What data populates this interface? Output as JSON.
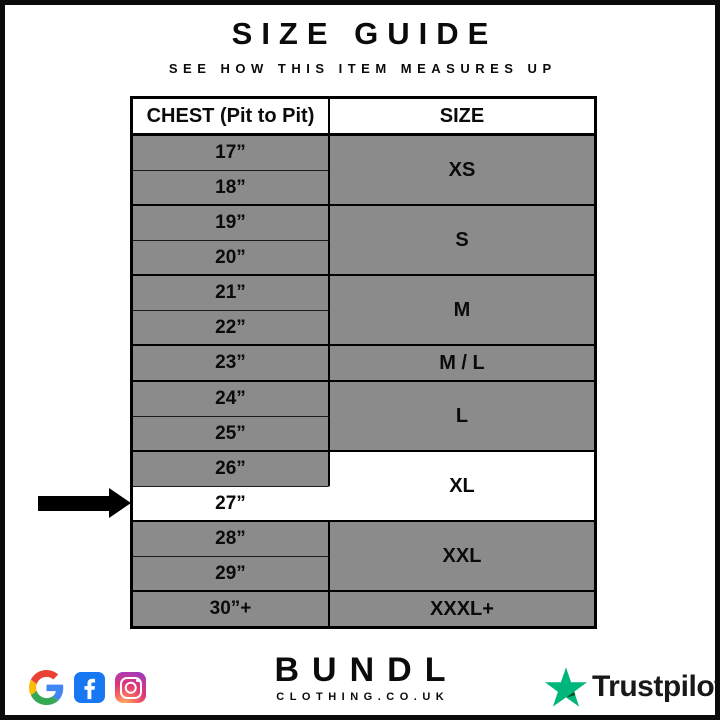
{
  "header": {
    "title": "SIZE GUIDE",
    "subtitle": "SEE HOW THIS ITEM MEASURES UP"
  },
  "table": {
    "columns": {
      "chest": "CHEST (Pit to Pit)",
      "size": "SIZE"
    },
    "groups": [
      {
        "size": "XS",
        "chest": [
          "17”",
          "18”"
        ]
      },
      {
        "size": "S",
        "chest": [
          "19”",
          "20”"
        ]
      },
      {
        "size": "M",
        "chest": [
          "21”",
          "22”"
        ]
      },
      {
        "size": "M / L",
        "chest": [
          "23”"
        ]
      },
      {
        "size": "L",
        "chest": [
          "24”",
          "25”"
        ]
      },
      {
        "size": "XL",
        "chest": [
          "26”",
          "27”"
        ],
        "highlight": {
          "chest": "27”",
          "size_cell_white": true
        }
      },
      {
        "size": "XXL",
        "chest": [
          "28”",
          "29”"
        ]
      },
      {
        "size": "XXXL+",
        "chest": [
          "30”+"
        ]
      }
    ],
    "colors": {
      "row_gray": "#8b8b8b",
      "highlight_white": "#ffffff",
      "border_black": "#000000"
    }
  },
  "annotation": {
    "arrow": {
      "points_to_chest": "27”",
      "direction": "right",
      "color": "#000000"
    }
  },
  "footer": {
    "social": [
      {
        "name": "google"
      },
      {
        "name": "facebook"
      },
      {
        "name": "instagram"
      }
    ],
    "google_colors": {
      "red": "#EA4335",
      "blue": "#4285F4",
      "yellow": "#FBBC05",
      "green": "#34A853"
    },
    "facebook_color": "#1877F2",
    "brand": {
      "name": "BUNDL",
      "domain": "CLOTHING.CO.UK"
    },
    "trustpilot": {
      "label": "Trustpilot",
      "star_color": "#00B67A",
      "star_shadow_color": "#005128",
      "text_color": "#191919"
    }
  }
}
